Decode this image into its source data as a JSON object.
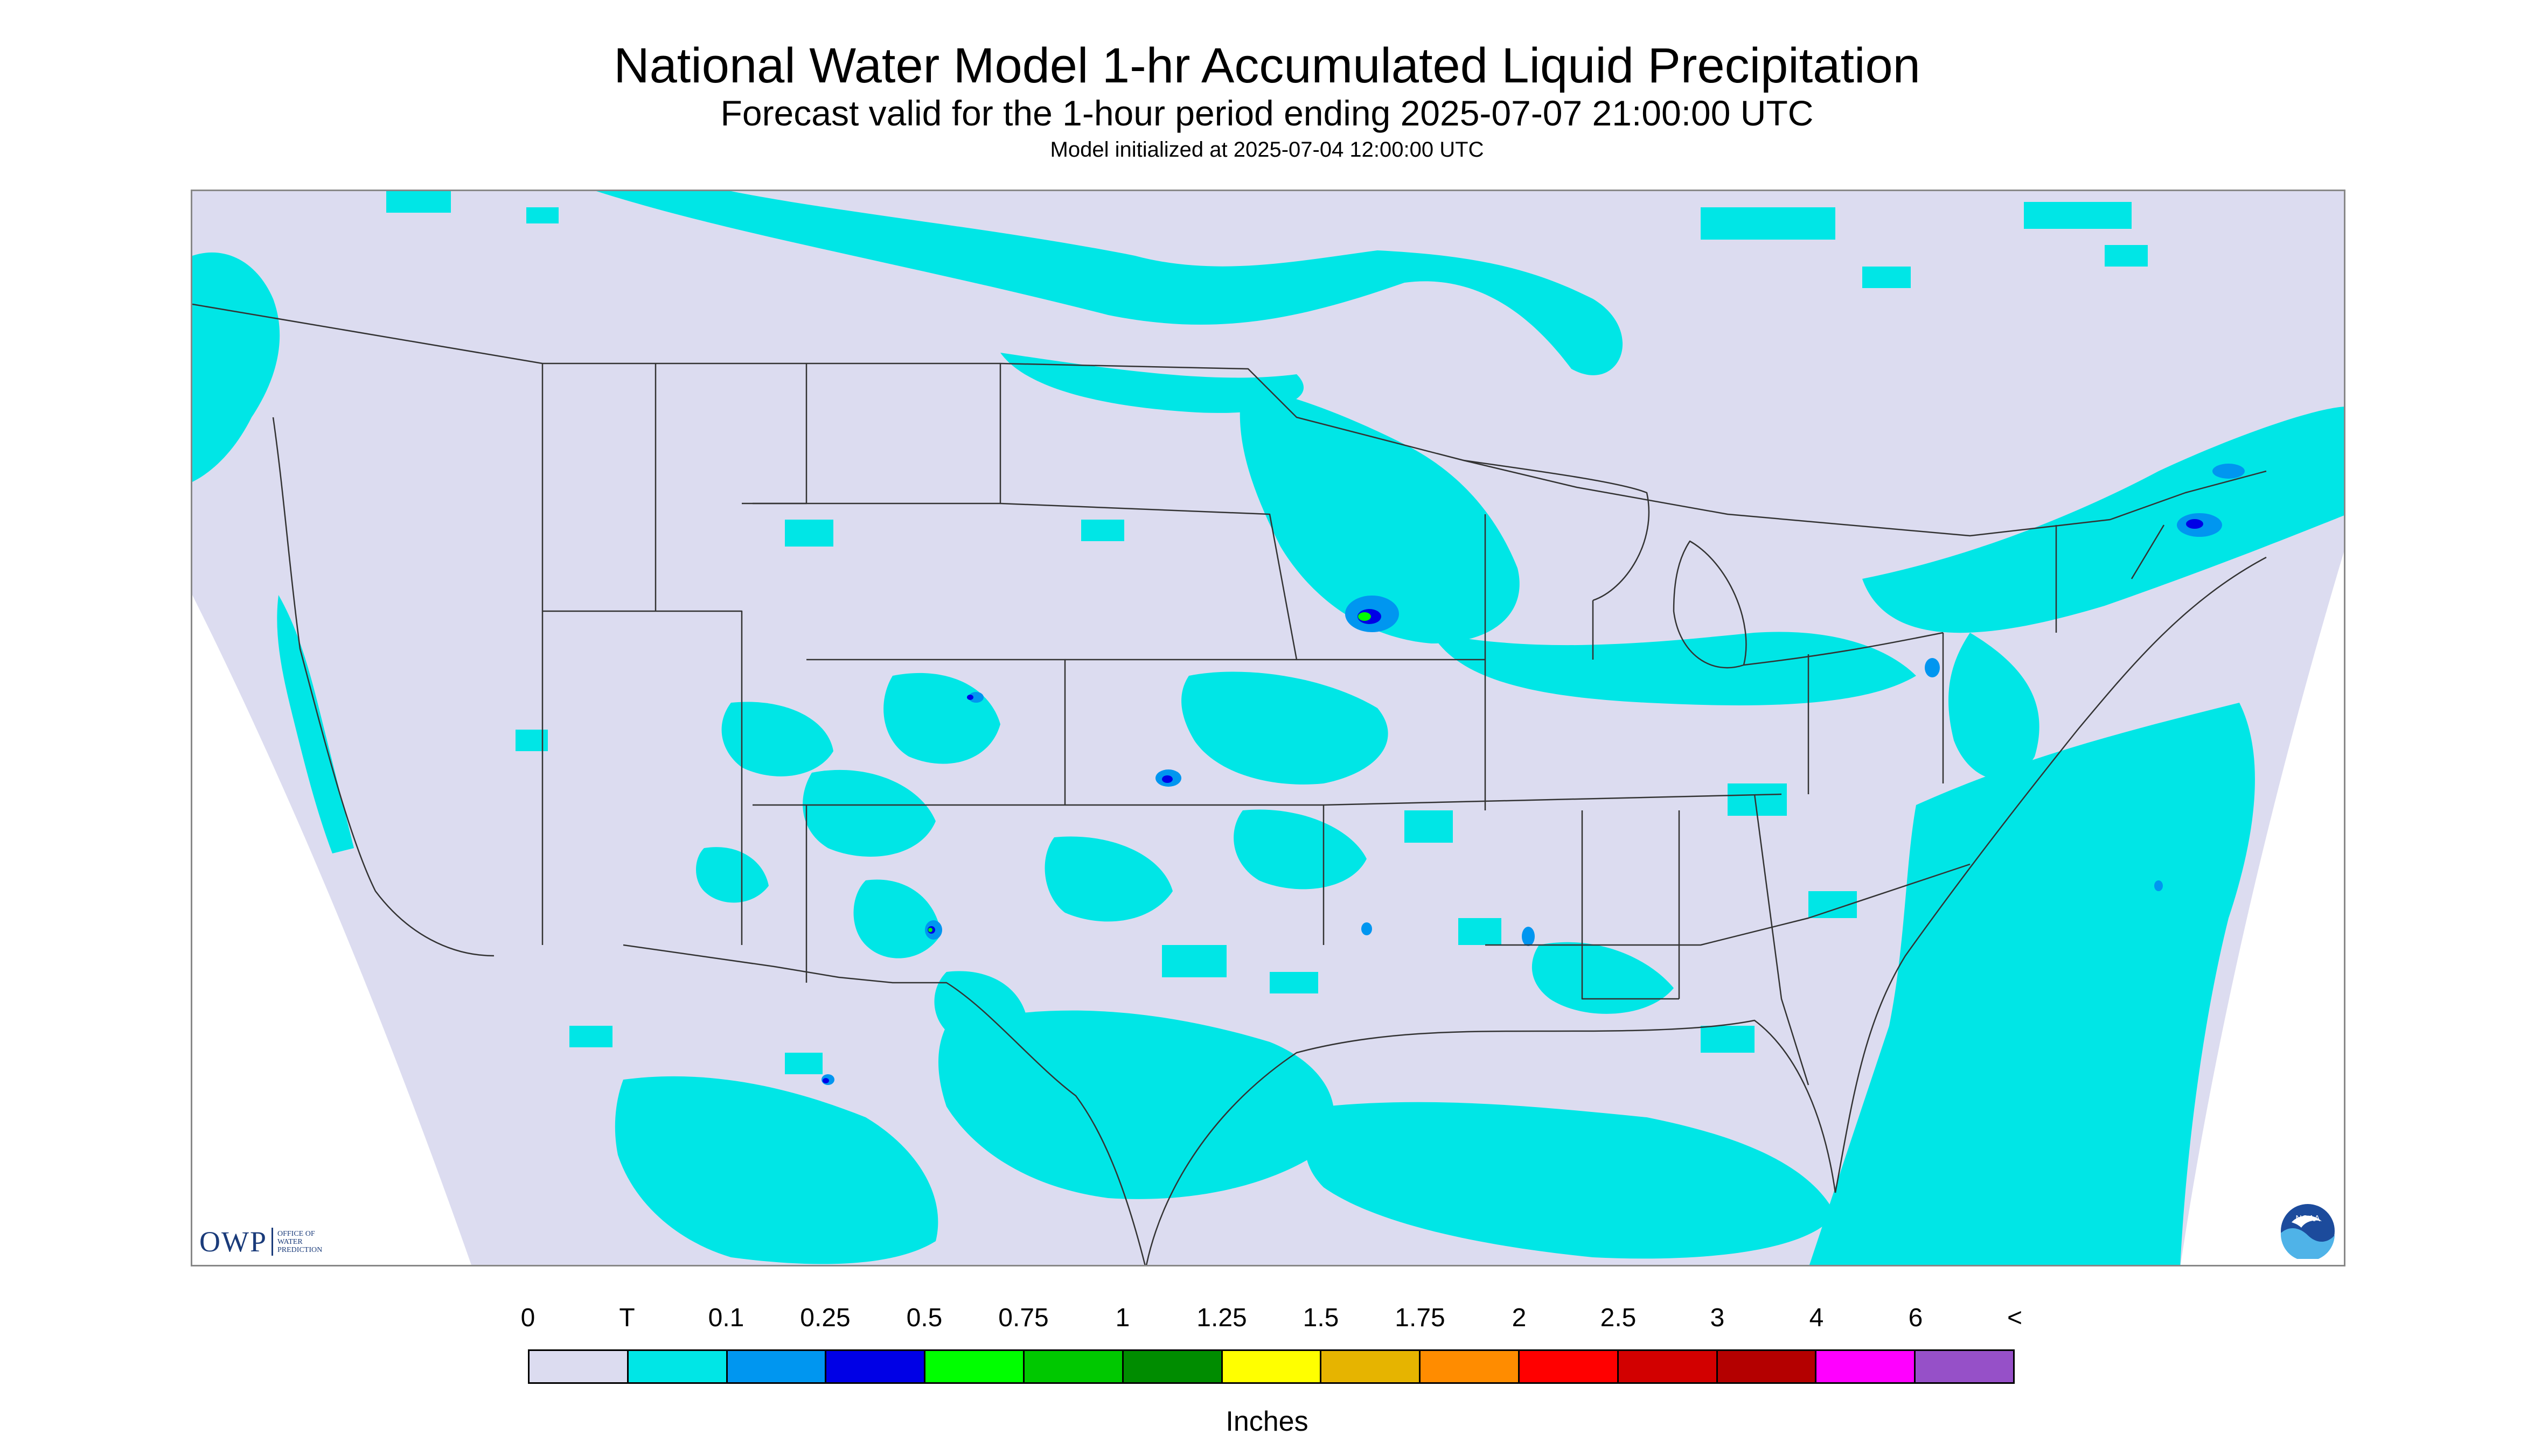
{
  "titles": {
    "main": "National Water Model 1-hr Accumulated Liquid Precipitation",
    "sub": "Forecast valid for the 1-hour period ending 2025-07-07 21:00:00 UTC",
    "init": "Model initialized at 2025-07-04 12:00:00 UTC"
  },
  "logos": {
    "owp_abbrev": "OWP",
    "owp_lines": [
      "OFFICE OF",
      "WATER",
      "PREDICTION"
    ],
    "noaa_text": "NOAA"
  },
  "legend": {
    "labels": [
      "0",
      "T",
      "0.1",
      "0.25",
      "0.5",
      "0.75",
      "1",
      "1.25",
      "1.5",
      "1.75",
      "2",
      "2.5",
      "3",
      "4",
      "6",
      "<"
    ],
    "colors": [
      "#dcdcf0",
      "#00e6e6",
      "#0096f0",
      "#0000e6",
      "#00ff00",
      "#00c800",
      "#008c00",
      "#ffff00",
      "#e6b400",
      "#ff8c00",
      "#ff0000",
      "#d20000",
      "#b40000",
      "#ff00ff",
      "#9650c8"
    ],
    "units": "Inches"
  },
  "map": {
    "background_color": "#dcdcf0",
    "outside_domain_color": "#ffffff",
    "trace_color": "#00e6e6",
    "light_color": "#0096f0",
    "moderate_color": "#0000e6",
    "heavy_color": "#00ff00",
    "boundary_color": "#333333"
  }
}
